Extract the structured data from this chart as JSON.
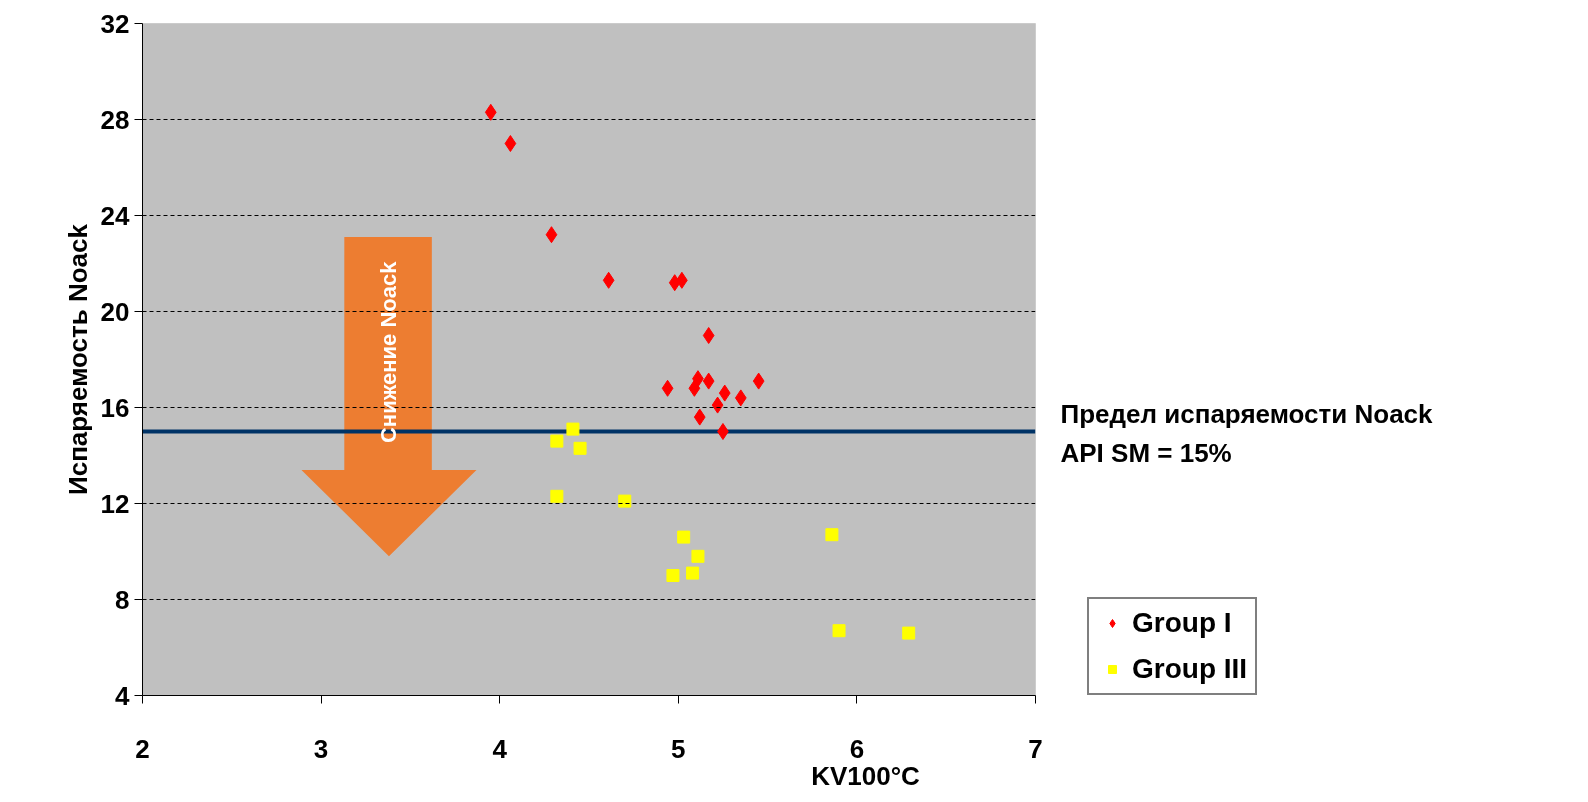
{
  "chart_data": {
    "type": "scatter",
    "xlabel": "KV100°C",
    "ylabel": "Испаряемость Noack",
    "xlim": [
      2,
      7
    ],
    "xticks": [
      2,
      3,
      4,
      5,
      6,
      7
    ],
    "ylim": [
      4,
      32
    ],
    "yticks": [
      4,
      8,
      12,
      16,
      20,
      24,
      28,
      32
    ],
    "grid": "y",
    "legend": "bottom right",
    "ref_lines": [
      {
        "axis": "y",
        "value": 15,
        "label": "Предел испаряемости Noack\nAPI SM = 15%",
        "color": "#003366"
      }
    ],
    "annotations": [
      "Снижение Noack"
    ],
    "series": [
      {
        "name": "Group I",
        "color": "#ff0000",
        "marker": "diamond",
        "x": [
          3.95,
          4.06,
          4.29,
          4.61,
          4.98,
          5.02,
          5.17,
          4.94,
          5.09,
          5.11,
          5.17,
          5.26,
          5.22,
          5.35,
          5.45,
          5.12,
          5.25
        ],
        "values": [
          28.3,
          27.0,
          23.2,
          21.3,
          21.2,
          21.3,
          19.0,
          16.8,
          16.8,
          17.2,
          17.1,
          16.6,
          16.1,
          16.4,
          17.1,
          15.6,
          15.0
        ]
      },
      {
        "name": "Group III",
        "color": "#ffff00",
        "marker": "square",
        "x": [
          4.41,
          4.32,
          4.45,
          4.32,
          4.7,
          5.03,
          5.11,
          4.97,
          5.08,
          5.86,
          5.9,
          6.29
        ],
        "values": [
          15.1,
          14.6,
          14.3,
          12.3,
          12.1,
          10.6,
          9.8,
          9.0,
          9.1,
          10.7,
          6.7,
          6.6
        ]
      }
    ]
  }
}
